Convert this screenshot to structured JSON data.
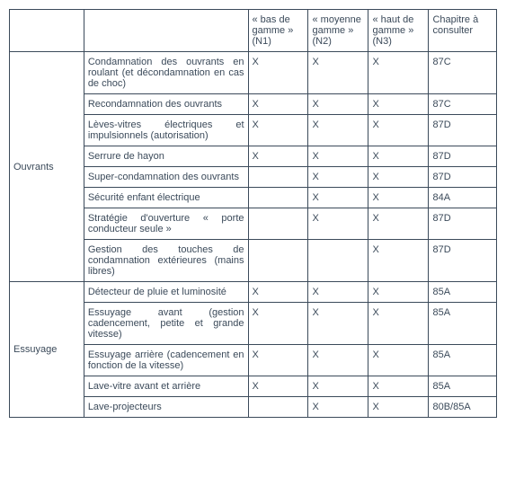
{
  "headers": {
    "category": "",
    "description": "",
    "n1": "« bas de gamme » (N1)",
    "n2": "« moyenne gamme » (N2)",
    "n3": "« haut de gamme » (N3)",
    "chapter": "Chapitre à consulter"
  },
  "sections": {
    "ouvrants": {
      "label": "Ouvrants"
    },
    "essuyage": {
      "label": "Essuyage"
    }
  },
  "rows": {
    "r1": {
      "desc": "Condamnation des ouvrants en roulant (et décondamnation en cas de choc)",
      "n1": "X",
      "n2": "X",
      "n3": "X",
      "chap": "87C"
    },
    "r2": {
      "desc": "Recondamnation des ouvrants",
      "n1": "X",
      "n2": "X",
      "n3": "X",
      "chap": "87C"
    },
    "r3": {
      "desc": "Lèves-vitres électriques et impulsionnels (autorisation)",
      "n1": "X",
      "n2": "X",
      "n3": "X",
      "chap": "87D"
    },
    "r4": {
      "desc": "Serrure de hayon",
      "n1": "X",
      "n2": "X",
      "n3": "X",
      "chap": "87D"
    },
    "r5": {
      "desc": "Super-condamnation des ouvrants",
      "n1": "",
      "n2": "X",
      "n3": "X",
      "chap": "87D"
    },
    "r6": {
      "desc": "Sécurité enfant électrique",
      "n1": "",
      "n2": "X",
      "n3": "X",
      "chap": "84A"
    },
    "r7": {
      "desc": "Stratégie d'ouverture « porte conducteur seule »",
      "n1": "",
      "n2": "X",
      "n3": "X",
      "chap": "87D"
    },
    "r8": {
      "desc": "Gestion des touches de condamnation extérieures (mains libres)",
      "n1": "",
      "n2": "",
      "n3": "X",
      "chap": "87D"
    },
    "r9": {
      "desc": "Détecteur de pluie et luminosité",
      "n1": "X",
      "n2": "X",
      "n3": "X",
      "chap": "85A"
    },
    "r10": {
      "desc": "Essuyage avant (gestion cadencement, petite et grande vitesse)",
      "n1": "X",
      "n2": "X",
      "n3": "X",
      "chap": "85A"
    },
    "r11": {
      "desc": "Essuyage arrière (cadencement en fonction de la vitesse)",
      "n1": "X",
      "n2": "X",
      "n3": "X",
      "chap": "85A"
    },
    "r12": {
      "desc": "Lave-vitre avant et arrière",
      "n1": "X",
      "n2": "X",
      "n3": "X",
      "chap": "85A"
    },
    "r13": {
      "desc": "Lave-projecteurs",
      "n1": "",
      "n2": "X",
      "n3": "X",
      "chap": "80B/85A"
    }
  },
  "styles": {
    "border_color": "#3b4a5a",
    "text_color": "#3b4a5a",
    "font_size_pt": 8,
    "background_color": "#ffffff"
  }
}
